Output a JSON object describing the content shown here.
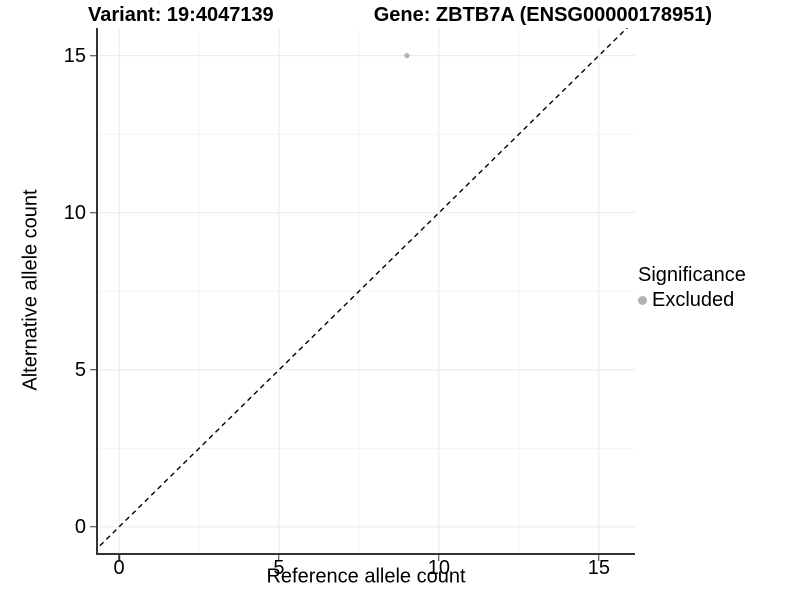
{
  "chart_data": {
    "type": "scatter",
    "title_left": "Variant: 19:4047139",
    "title_right": "Gene: ZBTB7A (ENSG00000178951)",
    "xlabel": "Reference allele count",
    "ylabel": "Alternative allele count",
    "x_ticks": [
      0,
      5,
      10,
      15
    ],
    "y_ticks": [
      0,
      5,
      10,
      15
    ],
    "x_minor_ticks": [
      2.5,
      7.5,
      12.5
    ],
    "y_minor_ticks": [
      2.5,
      7.5,
      12.5
    ],
    "xlim": [
      -0.69,
      16.13
    ],
    "ylim": [
      -0.83,
      15.88
    ],
    "grid": {
      "major": true,
      "minor": true
    },
    "points": [
      {
        "x": 9,
        "y": 15,
        "series": "Excluded"
      }
    ],
    "identity_line": {
      "equation": "y = x",
      "style": "dashed",
      "color": "#000000"
    },
    "legend": {
      "position": "right",
      "title": "Significance",
      "items": [
        {
          "label": "Excluded",
          "color": "#b2b2b2"
        }
      ]
    },
    "colors": {
      "point": "#b4b4b4",
      "axis": "#333333",
      "grid_major": "#e9e9e9",
      "grid_minor": "#f4f4f4"
    }
  }
}
